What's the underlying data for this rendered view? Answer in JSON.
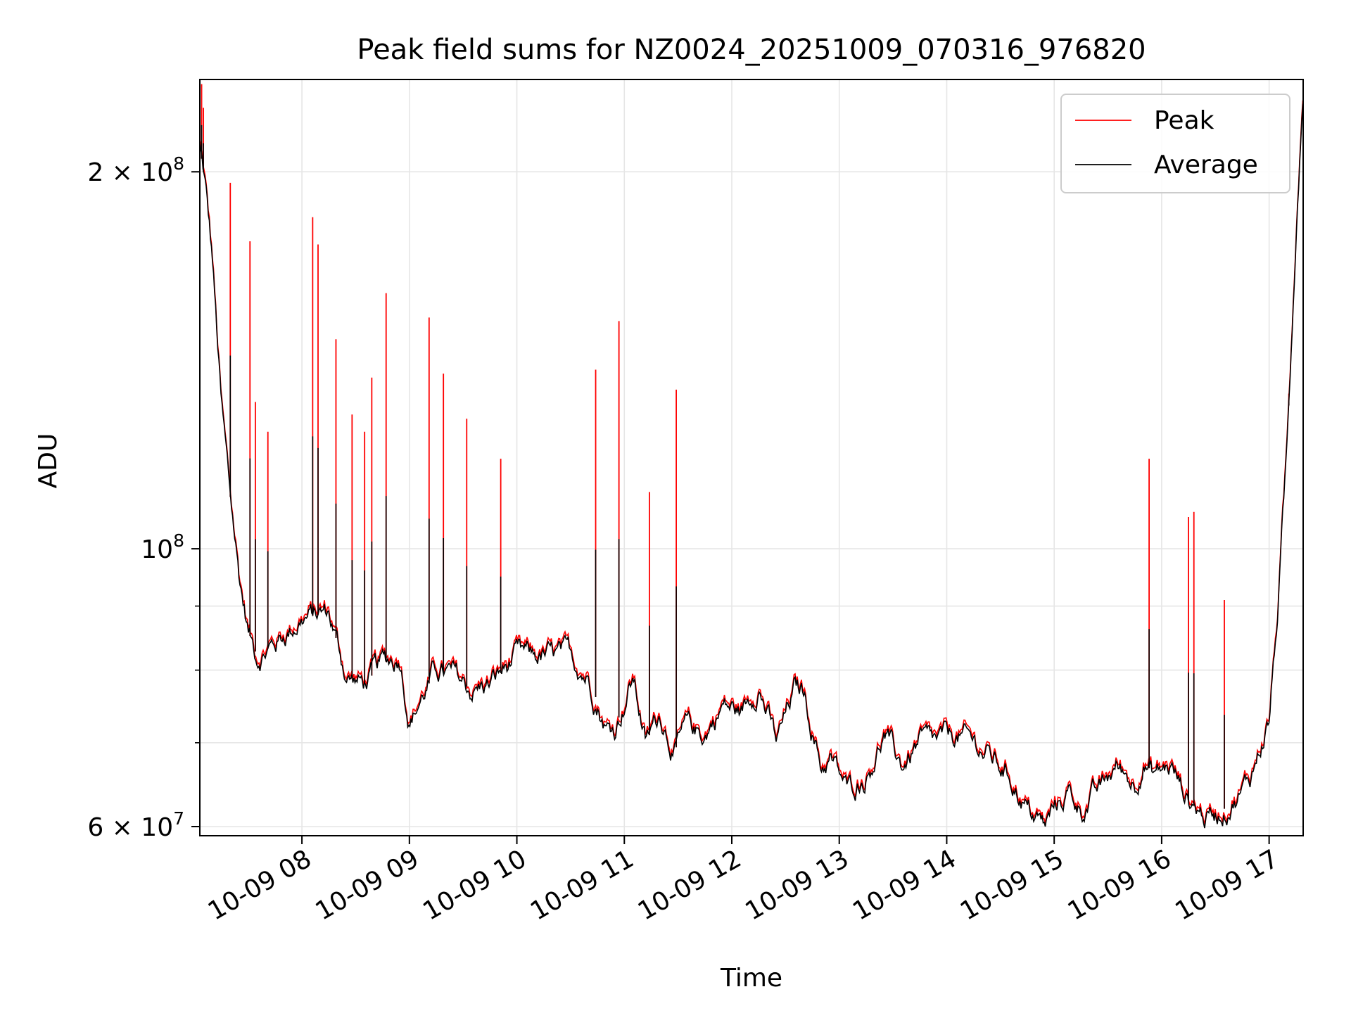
{
  "chart_data": {
    "type": "line",
    "title": "Peak field sums for NZ0024_20251009_070316_976820",
    "xlabel": "Time",
    "ylabel": "ADU",
    "y_scale": "log",
    "grid": true,
    "legend_position": "upper right",
    "xlim": [
      "2025-10-09 07:03",
      "2025-10-09 17:19"
    ],
    "ylim": [
      59000000,
      237000000
    ],
    "x_ticks": [
      "2025-10-09 08:00",
      "2025-10-09 09:00",
      "2025-10-09 10:00",
      "2025-10-09 11:00",
      "2025-10-09 12:00",
      "2025-10-09 13:00",
      "2025-10-09 14:00",
      "2025-10-09 15:00",
      "2025-10-09 16:00",
      "2025-10-09 17:00"
    ],
    "x_tick_labels": [
      "10-09 08",
      "10-09 09",
      "10-09 10",
      "10-09 11",
      "10-09 12",
      "10-09 13",
      "10-09 14",
      "10-09 15",
      "10-09 16",
      "10-09 17"
    ],
    "y_ticks": [
      {
        "value": 200000000,
        "mantissa": "2",
        "exponent": "8"
      },
      {
        "value": 100000000,
        "mantissa": "",
        "exponent": "8"
      },
      {
        "value": 60000000,
        "mantissa": "6",
        "exponent": "7"
      }
    ],
    "y_minor_ticks": [
      70000000,
      80000000,
      90000000
    ],
    "series": [
      {
        "name": "Peak",
        "color": "#ff0000"
      },
      {
        "name": "Average",
        "color": "#000000"
      }
    ],
    "average_series": {
      "name": "Average",
      "x": [
        "2025-10-09 07:03",
        "2025-10-09 07:06",
        "2025-10-09 07:10",
        "2025-10-09 07:15",
        "2025-10-09 07:20",
        "2025-10-09 07:25",
        "2025-10-09 07:30",
        "2025-10-09 07:35",
        "2025-10-09 07:45",
        "2025-10-09 08:00",
        "2025-10-09 08:15",
        "2025-10-09 08:25",
        "2025-10-09 08:35",
        "2025-10-09 08:45",
        "2025-10-09 08:55",
        "2025-10-09 09:00",
        "2025-10-09 09:15",
        "2025-10-09 09:25",
        "2025-10-09 09:35",
        "2025-10-09 09:45",
        "2025-10-09 10:00",
        "2025-10-09 10:15",
        "2025-10-09 10:30",
        "2025-10-09 10:40",
        "2025-10-09 10:50",
        "2025-10-09 10:55",
        "2025-10-09 11:05",
        "2025-10-09 11:12",
        "2025-10-09 11:20",
        "2025-10-09 11:28",
        "2025-10-09 11:35",
        "2025-10-09 11:45",
        "2025-10-09 11:55",
        "2025-10-09 12:05",
        "2025-10-09 12:15",
        "2025-10-09 12:25",
        "2025-10-09 12:35",
        "2025-10-09 12:40",
        "2025-10-09 12:50",
        "2025-10-09 12:55",
        "2025-10-09 13:05",
        "2025-10-09 13:15",
        "2025-10-09 13:25",
        "2025-10-09 13:35",
        "2025-10-09 13:45",
        "2025-10-09 13:55",
        "2025-10-09 14:05",
        "2025-10-09 14:15",
        "2025-10-09 14:25",
        "2025-10-09 14:35",
        "2025-10-09 14:45",
        "2025-10-09 14:55",
        "2025-10-09 15:00",
        "2025-10-09 15:08",
        "2025-10-09 15:15",
        "2025-10-09 15:25",
        "2025-10-09 15:35",
        "2025-10-09 15:45",
        "2025-10-09 15:50",
        "2025-10-09 15:55",
        "2025-10-09 16:05",
        "2025-10-09 16:15",
        "2025-10-09 16:25",
        "2025-10-09 16:35",
        "2025-10-09 16:45",
        "2025-10-09 16:50",
        "2025-10-09 17:00",
        "2025-10-09 17:05",
        "2025-10-09 17:10",
        "2025-10-09 17:15",
        "2025-10-09 17:19"
      ],
      "y": [
        210000000,
        195000000,
        170000000,
        130000000,
        110000000,
        95000000,
        86000000,
        82000000,
        84000000,
        88000000,
        89000000,
        79000000,
        78000000,
        81000000,
        82000000,
        73000000,
        80000000,
        79000000,
        77000000,
        78000000,
        82000000,
        82000000,
        82000000,
        79000000,
        72000000,
        72000000,
        79000000,
        70000000,
        74000000,
        69000000,
        72000000,
        71000000,
        75000000,
        74000000,
        78000000,
        70000000,
        77000000,
        77000000,
        67000000,
        68000000,
        64000000,
        66000000,
        71000000,
        67000000,
        70000000,
        70000000,
        71000000,
        70000000,
        68000000,
        66000000,
        62000000,
        60000000,
        62000000,
        64000000,
        62000000,
        64000000,
        67000000,
        65000000,
        68000000,
        66000000,
        67000000,
        63000000,
        61000000,
        62000000,
        64000000,
        66000000,
        73000000,
        90000000,
        120000000,
        180000000,
        237000000
      ]
    },
    "peak_spikes": {
      "name": "Peak",
      "x": [
        "2025-10-09 07:04",
        "2025-10-09 07:05",
        "2025-10-09 07:20",
        "2025-10-09 07:31",
        "2025-10-09 07:34",
        "2025-10-09 07:41",
        "2025-10-09 08:06",
        "2025-10-09 08:09",
        "2025-10-09 08:19",
        "2025-10-09 08:28",
        "2025-10-09 08:35",
        "2025-10-09 08:39",
        "2025-10-09 08:47",
        "2025-10-09 09:11",
        "2025-10-09 09:19",
        "2025-10-09 09:32",
        "2025-10-09 09:51",
        "2025-10-09 10:44",
        "2025-10-09 10:57",
        "2025-10-09 11:14",
        "2025-10-09 11:29",
        "2025-10-09 15:53",
        "2025-10-09 16:15",
        "2025-10-09 16:18",
        "2025-10-09 16:35",
        "2025-10-09 17:11"
      ],
      "y": [
        235000000,
        225000000,
        196000000,
        176000000,
        131000000,
        124000000,
        184000000,
        175000000,
        147000000,
        128000000,
        124000000,
        137000000,
        160000000,
        153000000,
        138000000,
        127000000,
        118000000,
        139000000,
        152000000,
        111000000,
        134000000,
        118000000,
        106000000,
        107000000,
        91000000,
        133000000
      ]
    }
  }
}
